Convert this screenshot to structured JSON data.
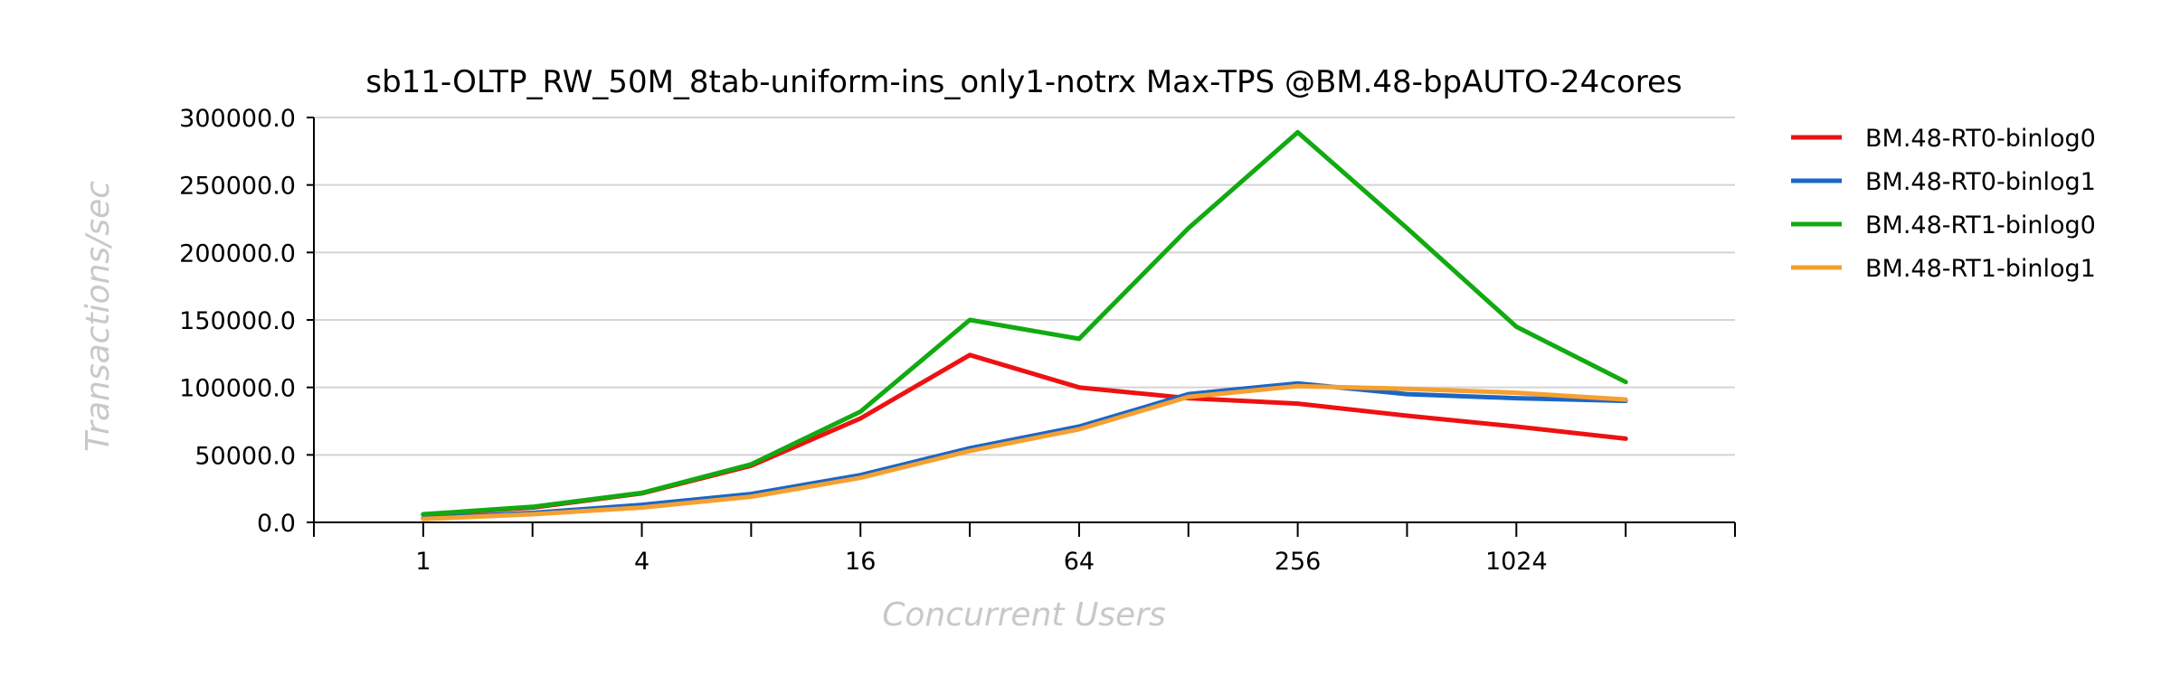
{
  "chart_data": {
    "type": "line",
    "title": "sb11-OLTP_RW_50M_8tab-uniform-ins_only1-notrx Max-TPS @BM.48-bpAUTO-24cores",
    "xlabel": "Concurrent Users",
    "ylabel": "Transactions/sec",
    "x_scale": "log2",
    "x": [
      1,
      2,
      4,
      8,
      16,
      32,
      64,
      128,
      256,
      512,
      1024,
      2048
    ],
    "x_tick_labels": [
      "1",
      "4",
      "16",
      "64",
      "256",
      "1024"
    ],
    "x_tick_values": [
      1,
      4,
      16,
      64,
      256,
      1024
    ],
    "xlim": [
      0.5,
      4096
    ],
    "ylim": [
      0,
      300000
    ],
    "y_ticks": [
      0,
      50000,
      100000,
      150000,
      200000,
      250000,
      300000
    ],
    "y_tick_labels": [
      "0.0",
      "50000.0",
      "100000.0",
      "150000.0",
      "200000.0",
      "250000.0",
      "300000.0"
    ],
    "grid": "horizontal",
    "legend_position": "right",
    "series": [
      {
        "name": "BM.48-RT0-binlog0",
        "color": "#ee1111",
        "values": [
          5800,
          11000,
          21500,
          42000,
          77000,
          124000,
          100000,
          92000,
          88000,
          79000,
          71000,
          62000
        ]
      },
      {
        "name": "BM.48-RT0-binlog1",
        "color": "#1a66c8",
        "values": [
          3000,
          7000,
          13000,
          21000,
          35000,
          55000,
          71000,
          95000,
          103000,
          95000,
          92000,
          90000
        ]
      },
      {
        "name": "BM.48-RT1-binlog0",
        "color": "#11aa11",
        "values": [
          6000,
          11500,
          21800,
          43000,
          82000,
          150000,
          136000,
          218000,
          289000,
          218000,
          145000,
          104000
        ]
      },
      {
        "name": "BM.48-RT1-binlog1",
        "color": "#f5a030",
        "values": [
          2500,
          6000,
          11000,
          19000,
          33000,
          53000,
          69000,
          93000,
          101000,
          99000,
          96000,
          91000
        ]
      }
    ]
  }
}
